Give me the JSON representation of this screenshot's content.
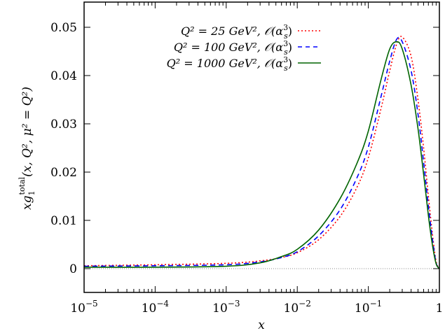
{
  "chart_data": {
    "type": "line",
    "title": "",
    "xlabel": "x",
    "ylabel": "x g_1^total(x, Q^2, μ^2 = Q^2)",
    "xscale": "log",
    "xlim": [
      1e-05,
      1
    ],
    "ylim": [
      -0.005,
      0.055
    ],
    "grid": false,
    "legend_position": "upper left",
    "x_ticks": [
      "10^-5",
      "10^-4",
      "10^-3",
      "10^-2",
      "10^-1",
      "1"
    ],
    "y_ticks": [
      "0",
      "0.01",
      "0.02",
      "0.03",
      "0.04",
      "0.05"
    ],
    "zero_line": {
      "style": "dotted",
      "color": "#888888"
    },
    "x": [
      1e-05,
      0.0001,
      0.001,
      0.003,
      0.006,
      0.01,
      0.02,
      0.04,
      0.07,
      0.1,
      0.15,
      0.2,
      0.25,
      0.3,
      0.4,
      0.5,
      0.6,
      0.7,
      0.8,
      0.9,
      1.0
    ],
    "series": [
      {
        "name": "Q^2 = 25 GeV^2, O(α_s^3)",
        "color": "#ff0000",
        "style": "dotted",
        "values": [
          0.0006,
          0.0008,
          0.0011,
          0.0016,
          0.0023,
          0.0033,
          0.006,
          0.0108,
          0.017,
          0.023,
          0.033,
          0.041,
          0.0465,
          0.048,
          0.044,
          0.035,
          0.025,
          0.015,
          0.007,
          0.0015,
          0.0
        ]
      },
      {
        "name": "Q^2 = 100 GeV^2, O(α_s^3)",
        "color": "#0000ff",
        "style": "dashed",
        "values": [
          0.0005,
          0.0006,
          0.0008,
          0.0014,
          0.0023,
          0.0035,
          0.0068,
          0.0122,
          0.019,
          0.0252,
          0.0355,
          0.043,
          0.0475,
          0.047,
          0.041,
          0.032,
          0.022,
          0.013,
          0.006,
          0.0012,
          0.0
        ]
      },
      {
        "name": "Q^2 = 1000 GeV^2, O(α_s^3)",
        "color": "#006400",
        "style": "solid",
        "values": [
          0.0003,
          0.0003,
          0.0005,
          0.0012,
          0.0025,
          0.004,
          0.008,
          0.0145,
          0.022,
          0.0285,
          0.039,
          0.0455,
          0.047,
          0.0455,
          0.038,
          0.029,
          0.0195,
          0.011,
          0.0048,
          0.001,
          0.0
        ]
      }
    ]
  },
  "legend": {
    "items": [
      {
        "label_prefix": "Q² = 25 GeV², 𝒪(α",
        "label_sub": "s",
        "label_sup": "3",
        "label_suffix": ")",
        "color": "#ff0000",
        "dash": "2,3"
      },
      {
        "label_prefix": "Q² = 100 GeV², 𝒪(α",
        "label_sub": "s",
        "label_sup": "3",
        "label_suffix": ")",
        "color": "#0000ff",
        "dash": "6,5"
      },
      {
        "label_prefix": "Q² = 1000 GeV², 𝒪(α",
        "label_sub": "s",
        "label_sup": "3",
        "label_suffix": ")",
        "color": "#006400",
        "dash": ""
      }
    ]
  },
  "axes": {
    "x_tick_base": "10",
    "x_tick_exponents": [
      "−5",
      "−4",
      "−3",
      "−2",
      "−1",
      ""
    ],
    "x_tick_last": "1",
    "y_tick_labels": [
      "0",
      "0.01",
      "0.02",
      "0.03",
      "0.04",
      "0.05"
    ],
    "x_title": "x",
    "y_title_main": "xg",
    "y_title_sub": "1",
    "y_title_sup": "total",
    "y_title_args": "(x, Q², μ² = Q²)"
  }
}
